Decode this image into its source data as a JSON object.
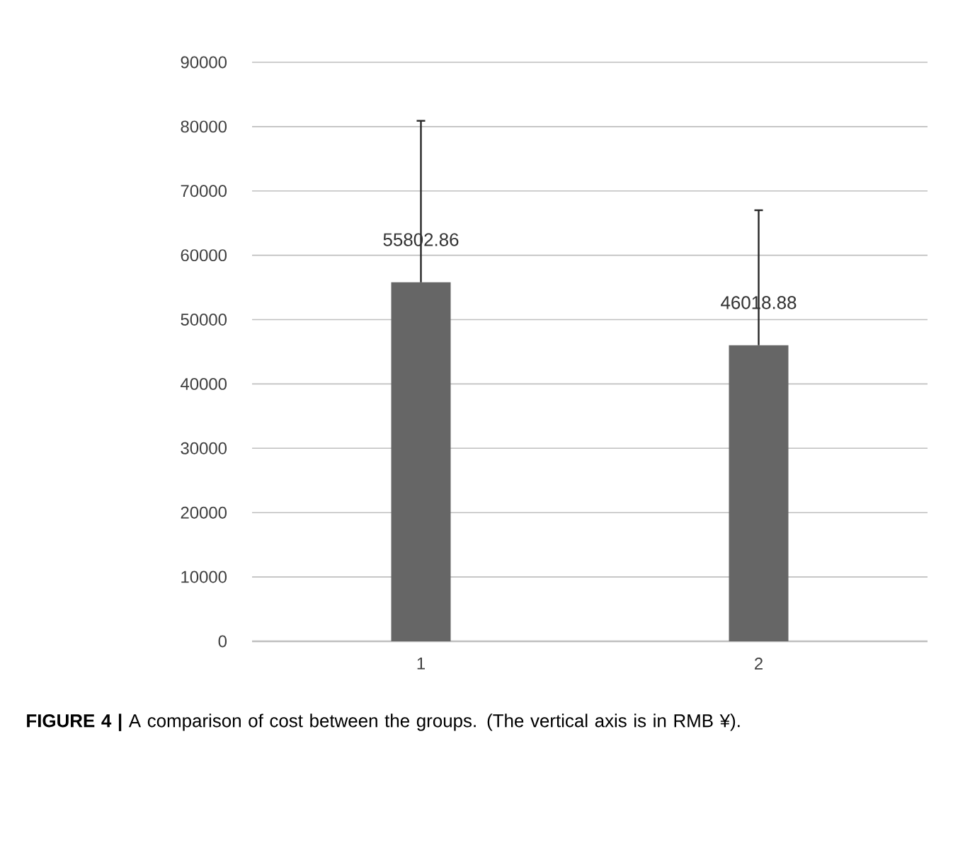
{
  "chart_data": {
    "type": "bar",
    "categories": [
      "1",
      "2"
    ],
    "values": [
      55802.86,
      46018.88
    ],
    "color": "#666666",
    "errors": [
      [
        55802.86,
        80900
      ],
      [
        46018.88,
        67000
      ]
    ],
    "value_labels": [
      "55802.86",
      "46018.88"
    ],
    "ylim": [
      0,
      90000
    ],
    "yticks": [
      0,
      10000,
      20000,
      30000,
      40000,
      50000,
      60000,
      70000,
      80000,
      90000
    ],
    "grid": "y",
    "annotations": [
      "**FIGURE 4 |** A comparison of cost between the groups. (The vertical axis is in RMB ¥)."
    ]
  }
}
